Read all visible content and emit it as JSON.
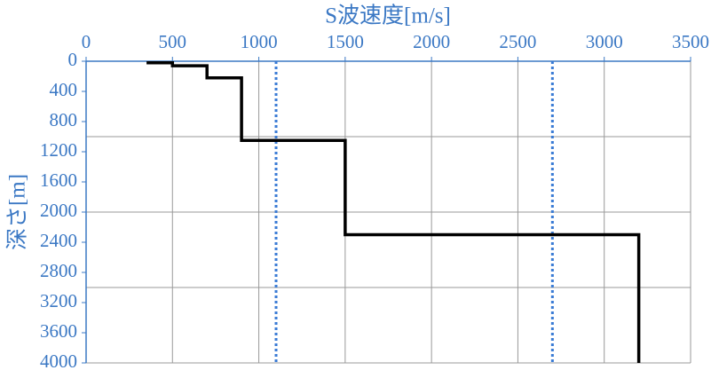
{
  "chart_data": {
    "type": "line",
    "x_label": "S波速度[m/s]",
    "y_label": "深さ[m]",
    "xlim": [
      0,
      3500
    ],
    "xticks": [
      0,
      500,
      1000,
      1500,
      2000,
      2500,
      3000,
      3500
    ],
    "ylim": [
      0,
      4000
    ],
    "yticks": [
      0,
      400,
      800,
      1200,
      1600,
      2000,
      2400,
      2800,
      3200,
      3600,
      4000
    ],
    "y_inverted": true,
    "x_axis_position": "top",
    "ygrid": [
      1000,
      2000,
      3000,
      4000
    ],
    "grid": true,
    "series": [
      {
        "color": "#000000",
        "x": [
          350,
          500,
          500,
          700,
          700,
          900,
          900,
          1500,
          1500,
          3200,
          3200
        ],
        "values": [
          20,
          20,
          60,
          60,
          220,
          220,
          1050,
          1050,
          2300,
          2300,
          4000
        ]
      }
    ],
    "reference_lines": [
      {
        "x": 1100,
        "color": "#3a7bd5"
      },
      {
        "x": 2700,
        "color": "#3a7bd5"
      }
    ]
  }
}
